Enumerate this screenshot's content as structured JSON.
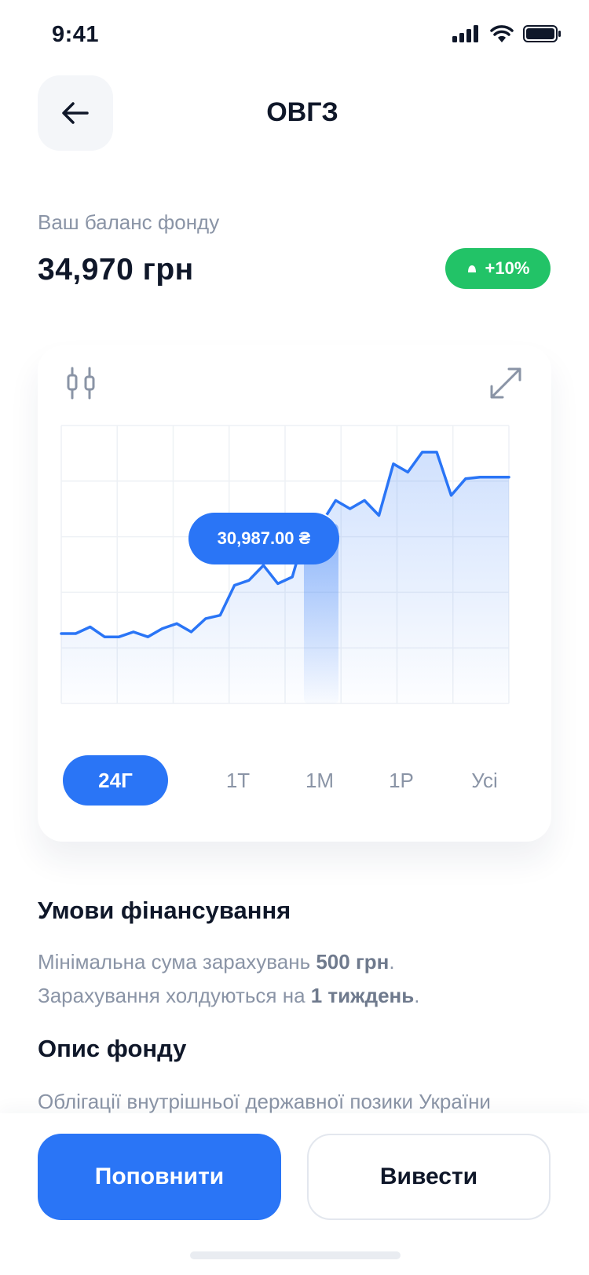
{
  "status_bar": {
    "time": "9:41"
  },
  "header": {
    "title": "ОВГЗ",
    "back_icon": "arrow-left-icon"
  },
  "balance": {
    "label": "Ваш баланс фонду",
    "value": "34,970 грн",
    "change": "+10%"
  },
  "chart": {
    "tooltip": "30,987.00 ₴",
    "periods": [
      "24Г",
      "1Т",
      "1М",
      "1Р",
      "Усі"
    ],
    "active_period": "24Г"
  },
  "chart_data": {
    "type": "area",
    "x": [
      0,
      1,
      2,
      3,
      4,
      5,
      6,
      7,
      8,
      9,
      10,
      11,
      12,
      13,
      14,
      15,
      16,
      17,
      18,
      19,
      20,
      21,
      22,
      23,
      24,
      25,
      26,
      27,
      28,
      29,
      30,
      31
    ],
    "values": [
      25,
      25,
      29,
      23,
      23,
      26,
      23,
      28,
      31,
      26,
      34,
      36,
      54,
      57,
      66,
      55,
      59,
      89,
      91,
      105,
      100,
      105,
      96,
      127,
      122,
      134,
      134,
      108,
      118,
      119,
      119,
      119
    ],
    "highlight_index": 18,
    "grid": true,
    "colors": {
      "line": "#2a75f6",
      "fill": "#dbe7fd"
    }
  },
  "conditions": {
    "title": "Умови фінансування",
    "line1_text": "Мінімальна сума зарахувань ",
    "line1_bold": "500 грн",
    "line1_end": ".",
    "line2_text": "Зарахування холдуються на ",
    "line2_bold": "1 тиждень",
    "line2_end": "."
  },
  "description": {
    "title": "Опис фонду",
    "text": "Облігації внутрішньої державної позики України"
  },
  "actions": {
    "deposit": "Поповнити",
    "withdraw": "Вивести"
  },
  "colors": {
    "accent": "#2a75f6",
    "positive": "#22c367",
    "text": "#0f1729",
    "muted": "#8a94a6"
  }
}
